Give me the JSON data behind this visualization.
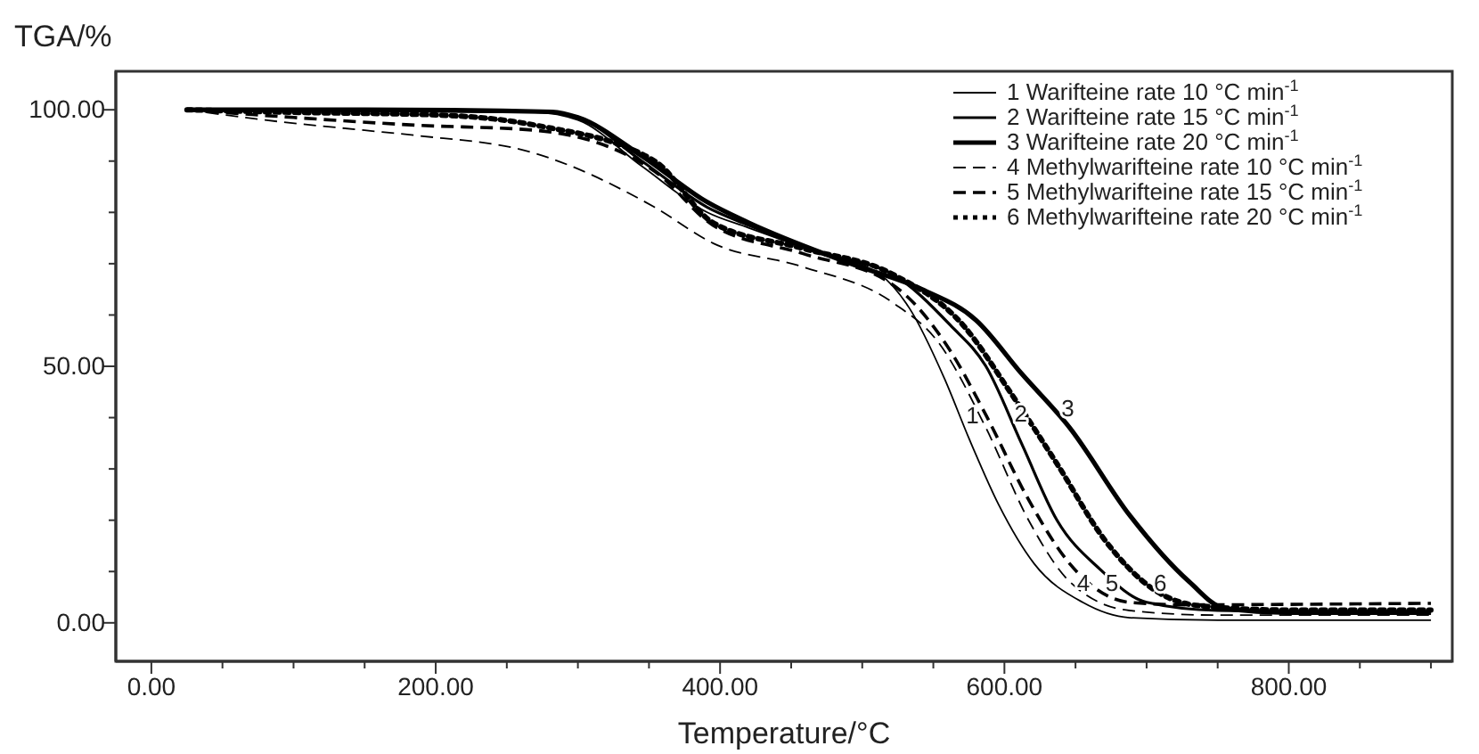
{
  "chart_data": {
    "type": "line",
    "xlabel": "Temperature/°C",
    "ylabel": "TGA/%",
    "xlim": [
      -25,
      915
    ],
    "ylim": [
      -7.5,
      107.5
    ],
    "xticks": [
      {
        "value": 0,
        "label": "0.00"
      },
      {
        "value": 50,
        "label": null
      },
      {
        "value": 100,
        "label": null
      },
      {
        "value": 150,
        "label": null
      },
      {
        "value": 200,
        "label": "200.00"
      },
      {
        "value": 250,
        "label": null
      },
      {
        "value": 300,
        "label": null
      },
      {
        "value": 350,
        "label": null
      },
      {
        "value": 400,
        "label": "400.00"
      },
      {
        "value": 450,
        "label": null
      },
      {
        "value": 500,
        "label": null
      },
      {
        "value": 550,
        "label": null
      },
      {
        "value": 600,
        "label": "600.00"
      },
      {
        "value": 650,
        "label": null
      },
      {
        "value": 700,
        "label": null
      },
      {
        "value": 750,
        "label": null
      },
      {
        "value": 800,
        "label": "800.00"
      },
      {
        "value": 850,
        "label": null
      },
      {
        "value": 900,
        "label": null
      }
    ],
    "yticks": [
      {
        "value": 0,
        "label": "0.00"
      },
      {
        "value": 10,
        "label": null
      },
      {
        "value": 20,
        "label": null
      },
      {
        "value": 30,
        "label": null
      },
      {
        "value": 40,
        "label": null
      },
      {
        "value": 50,
        "label": "50.00"
      },
      {
        "value": 60,
        "label": null
      },
      {
        "value": 70,
        "label": null
      },
      {
        "value": 80,
        "label": null
      },
      {
        "value": 90,
        "label": null
      },
      {
        "value": 100,
        "label": "100.00"
      }
    ],
    "grid": false,
    "legend": "top right",
    "marker": "none",
    "series": [
      {
        "name": "1 Warifteine rate 10 °C min$^{-1}$",
        "color": "#000000",
        "line_style": "solid",
        "x": [
          25,
          150,
          270,
          300,
          345,
          391,
          420,
          470,
          512,
          533,
          558,
          575,
          596,
          621,
          655,
          688,
          750,
          900
        ],
        "values": [
          100,
          99.8,
          99.5,
          98,
          89,
          80,
          77,
          72,
          68,
          61.4,
          47.5,
          36,
          23,
          11.5,
          4,
          1,
          0.5,
          0.5
        ]
      },
      {
        "name": "2 Warifteine rate 15 °C min$^{-1}$",
        "color": "#000000",
        "line_style": "solid",
        "x": [
          25,
          150,
          275,
          300,
          345,
          391,
          420,
          470,
          521,
          562,
          587,
          612,
          637,
          667,
          700,
          750,
          900
        ],
        "values": [
          100,
          99.8,
          99.6,
          98.5,
          90,
          81,
          77.5,
          72,
          68,
          58,
          50,
          35,
          20,
          10.5,
          4,
          2.4,
          2
        ]
      },
      {
        "name": "3 Warifteine rate 20 °C min$^{-1}$",
        "color": "#000000",
        "line_style": "solid",
        "x": [
          25,
          150,
          282,
          300,
          345,
          391,
          420,
          492,
          542,
          580,
          612,
          646,
          688,
          730,
          755,
          800,
          900
        ],
        "values": [
          100,
          100,
          99.6,
          98.5,
          91,
          82,
          78,
          70,
          65,
          59,
          48.6,
          38,
          21,
          8,
          2.8,
          2,
          2
        ]
      },
      {
        "name": "4 Methylwarifteine rate 10 °C min$^{-1}$",
        "color": "#000000",
        "line_style": "dashed",
        "x": [
          25,
          80,
          150,
          186,
          270,
          354,
          395,
          458,
          521,
          554,
          587,
          617,
          646,
          688,
          750,
          900
        ],
        "values": [
          100,
          98,
          96,
          95,
          91.5,
          81,
          74,
          69.4,
          62.5,
          54.5,
          38,
          20,
          8,
          2.4,
          1.5,
          1.5
        ]
      },
      {
        "name": "5 Methylwarifteine rate 15 °C min$^{-1}$",
        "color": "#000000",
        "line_style": "dashed",
        "x": [
          25,
          100,
          186,
          270,
          354,
          395,
          458,
          521,
          562,
          587,
          617,
          646,
          688,
          730,
          800,
          900
        ],
        "values": [
          100,
          98.5,
          97,
          96,
          88,
          77.5,
          72,
          66,
          53,
          40.5,
          24,
          11.5,
          4,
          3.5,
          3.6,
          3.8
        ]
      },
      {
        "name": "6 Methylwarifteine rate 20 °C min$^{-1}$",
        "color": "#000000",
        "line_style": "dotted",
        "x": [
          25,
          100,
          200,
          270,
          354,
          395,
          458,
          521,
          571,
          604,
          637,
          671,
          705,
          738,
          800,
          900
        ],
        "values": [
          100,
          99.5,
          99,
          97,
          90,
          78,
          73,
          68,
          58,
          45,
          31,
          16,
          6.5,
          3.3,
          2.5,
          2.5
        ]
      }
    ],
    "annotations": [
      {
        "text": "1",
        "x": 568,
        "y": 40.6
      },
      {
        "text": "2",
        "x": 602,
        "y": 41
      },
      {
        "text": "3",
        "x": 635,
        "y": 42
      },
      {
        "text": "4",
        "x": 646,
        "y": 8
      },
      {
        "text": "5",
        "x": 666,
        "y": 8
      },
      {
        "text": "6",
        "x": 700,
        "y": 8
      }
    ]
  }
}
